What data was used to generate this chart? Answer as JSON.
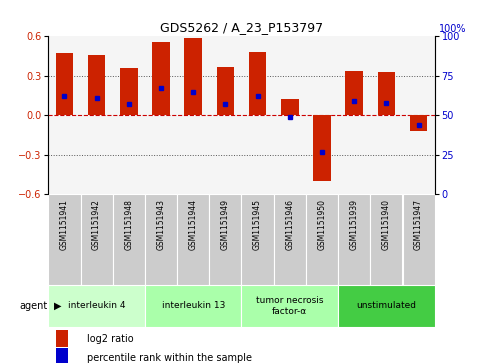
{
  "title": "GDS5262 / A_23_P153797",
  "samples": [
    "GSM1151941",
    "GSM1151942",
    "GSM1151948",
    "GSM1151943",
    "GSM1151944",
    "GSM1151949",
    "GSM1151945",
    "GSM1151946",
    "GSM1151950",
    "GSM1151939",
    "GSM1151940",
    "GSM1151947"
  ],
  "log2_ratios": [
    0.47,
    0.46,
    0.36,
    0.56,
    0.59,
    0.37,
    0.48,
    0.12,
    -0.5,
    0.34,
    0.33,
    -0.12
  ],
  "percentile_ranks": [
    62,
    61,
    57,
    67,
    65,
    57,
    62,
    49,
    27,
    59,
    58,
    44
  ],
  "ylim": [
    -0.6,
    0.6
  ],
  "yticks_left": [
    -0.6,
    -0.3,
    0,
    0.3,
    0.6
  ],
  "yticks_right": [
    0,
    25,
    50,
    75,
    100
  ],
  "groups": [
    {
      "label": "interleukin 4",
      "start": 0,
      "end": 3,
      "color": "#ccffcc"
    },
    {
      "label": "interleukin 13",
      "start": 3,
      "end": 6,
      "color": "#aaffaa"
    },
    {
      "label": "tumor necrosis\nfactor-α",
      "start": 6,
      "end": 9,
      "color": "#aaffaa"
    },
    {
      "label": "unstimulated",
      "start": 9,
      "end": 12,
      "color": "#44cc44"
    }
  ],
  "bar_color": "#cc2200",
  "percentile_color": "#0000cc",
  "zero_line_color": "#cc0000",
  "dotted_line_color": "#555555",
  "bg_color": "#ffffff",
  "legend_red_label": "log2 ratio",
  "legend_blue_label": "percentile rank within the sample",
  "agent_label": "agent",
  "plot_bg": "#f5f5f5"
}
